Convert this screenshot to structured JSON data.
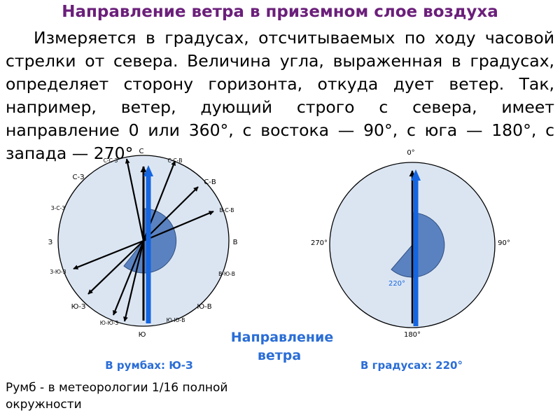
{
  "title": "Направление ветра в приземном слое воздуха",
  "paragraph": "Измеряется в градусах, отсчитываемых по ходу часовой стрелки от севера. Величина угла, выраженная в градусах, определяет сторону горизонта, откуда дует ветер. Так, например, ветер, дующий строго с севера, имеет направление 0 или 360°, с востока — 90°, с юга — 180°, с запада — 270°.",
  "left_compass": {
    "labels": {
      "N": "С",
      "NNE": "С-С-В",
      "NE": "С-В",
      "ENE": "В-С-В",
      "E": "В",
      "ESE": "В-Ю-В",
      "SE": "Ю-В",
      "SSE": "Ю-Ю-В",
      "S": "Ю",
      "SSW": "Ю-Ю-З",
      "SW": "Ю-З",
      "WSW": "З-Ю-З",
      "W": "З",
      "WNW": "З-С-З",
      "NW": "С-З",
      "NNW": "С-С-З"
    },
    "caption": "В румбах: Ю-З",
    "wind_from": "Ю-З"
  },
  "right_compass": {
    "labels": {
      "N": "0°",
      "E": "90°",
      "S": "180°",
      "W": "270°"
    },
    "angle_label": "220°",
    "caption": "В градусах: 220°",
    "wind_from_deg": 220
  },
  "center_caption_line1": "Направление",
  "center_caption_line2": "ветра",
  "footer_line1": "Румб - в метеорологии 1/16 полной",
  "footer_line2": "окружности",
  "colors": {
    "title": "#6b1f7a",
    "circle_fill": "#dbe5f2",
    "sector": "#5b82c0",
    "wind_arrow": "#1565e0",
    "caption": "#2a6dd6"
  }
}
